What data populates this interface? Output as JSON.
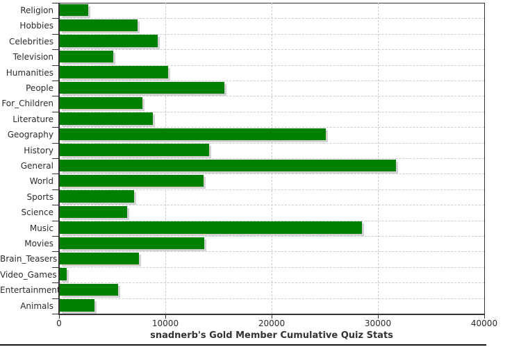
{
  "chart_data": {
    "type": "bar",
    "orientation": "horizontal",
    "xlabel": "snadnerb's Gold Member Cumulative Quiz Stats",
    "categories": [
      "Religion",
      "Hobbies",
      "Celebrities",
      "Television",
      "Humanities",
      "People",
      "For_Children",
      "Literature",
      "Geography",
      "History",
      "General",
      "World",
      "Sports",
      "Science",
      "Music",
      "Movies",
      "Brain_Teasers",
      "Video_Games",
      "Entertainment",
      "Animals"
    ],
    "values": [
      2650,
      7300,
      9200,
      5050,
      10200,
      15500,
      7800,
      8750,
      25050,
      14050,
      31600,
      13500,
      7000,
      6350,
      28400,
      13600,
      7450,
      670,
      5500,
      3250
    ],
    "xlim": [
      0,
      40000
    ],
    "x_ticks": [
      0,
      10000,
      20000,
      30000,
      40000
    ],
    "x_tick_labels": [
      "0",
      "10000",
      "20000",
      "30000",
      "40000"
    ],
    "grid": true,
    "legend": "none",
    "bar_color": "#008000",
    "shadow_color": "#d2d2d2",
    "gridline_color": "#cccccc",
    "axis_color": "#333333",
    "text_color": "#2b2b2b"
  }
}
